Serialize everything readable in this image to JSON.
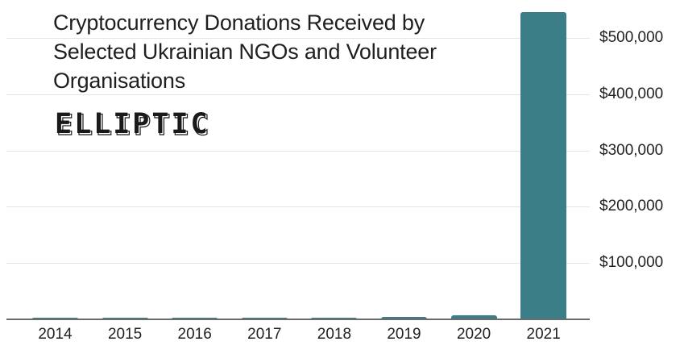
{
  "title": "Cryptocurrency Donations Received by Selected Ukrainian NGOs and Volunteer Organisations",
  "logo": {
    "text": "ELLIPTIC",
    "icon": "elliptic-logo"
  },
  "colors": {
    "bar": "#3c7e87",
    "grid": "#e4e4e4",
    "axis": "#6b6b6b",
    "text": "#222222"
  },
  "chart_data": {
    "type": "bar",
    "title": "Cryptocurrency Donations Received by Selected Ukrainian NGOs and Volunteer Organisations",
    "xlabel": "",
    "ylabel": "",
    "categories": [
      "2014",
      "2015",
      "2016",
      "2017",
      "2018",
      "2019",
      "2020",
      "2021"
    ],
    "values": [
      2000,
      2000,
      2000,
      2000,
      2000,
      4000,
      7000,
      546000
    ],
    "ylim": [
      0,
      550000
    ],
    "yticks": [
      100000,
      200000,
      300000,
      400000,
      500000
    ],
    "ytick_labels": [
      "$100,000",
      "$200,000",
      "$300,000",
      "$400,000",
      "$500,000"
    ],
    "y_axis_position": "right",
    "grid": true,
    "legend": null
  }
}
